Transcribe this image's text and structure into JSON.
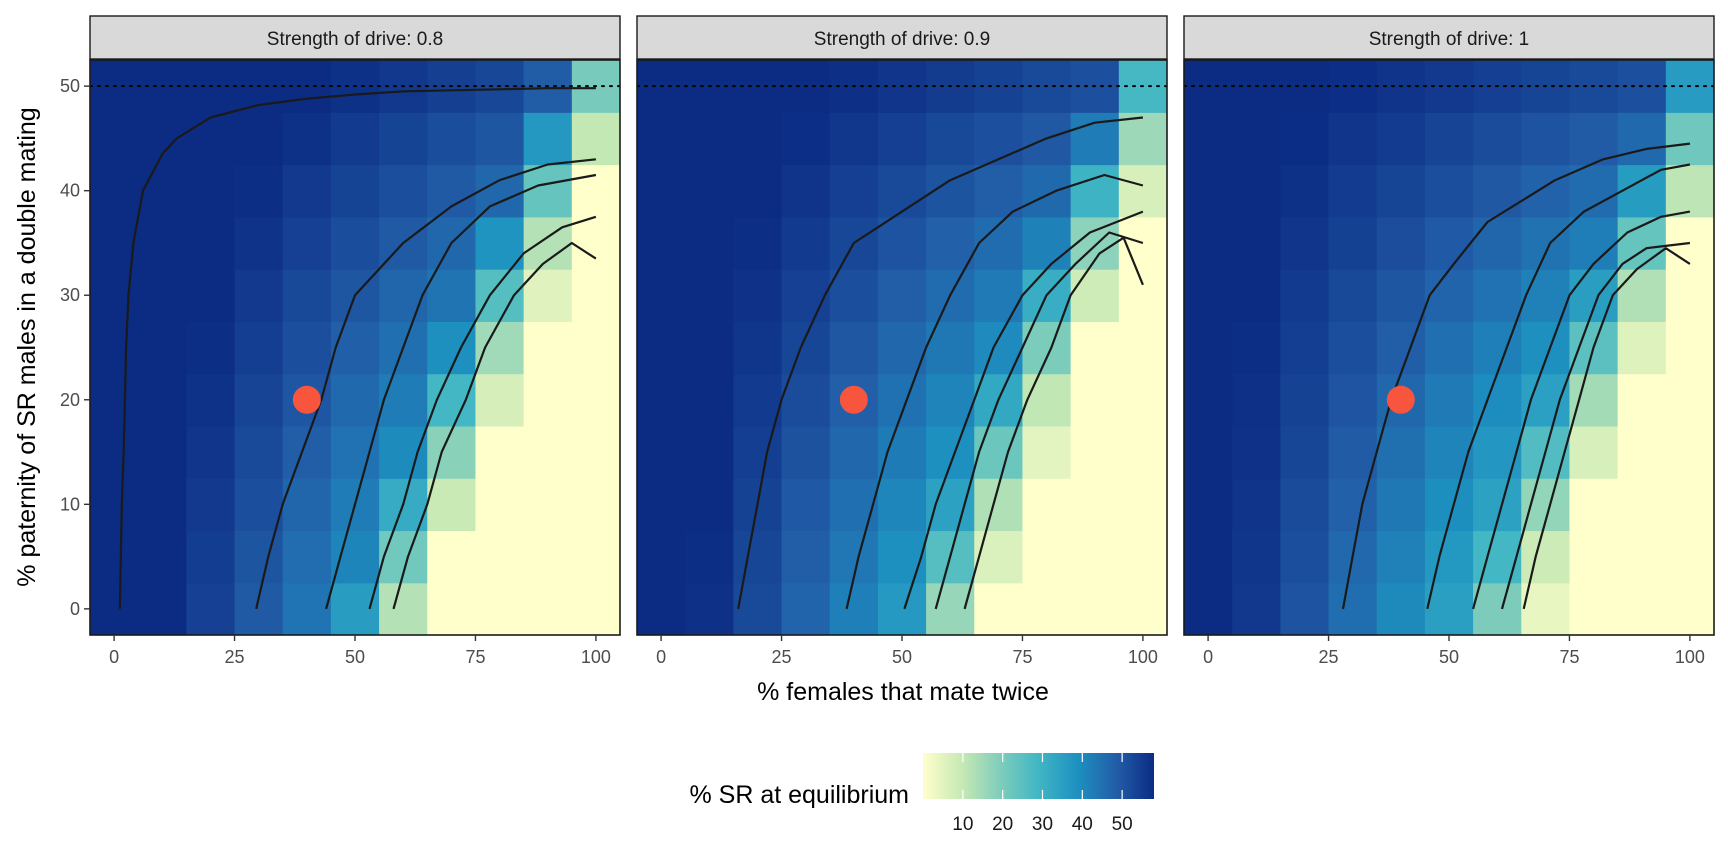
{
  "chart_data": {
    "type": "heatmap",
    "xlabel": "% females that mate twice",
    "ylabel": "% paternity of SR males in a double mating",
    "xlim": [
      -5,
      105
    ],
    "ylim": [
      -2.5,
      52.5
    ],
    "x_ticks": [
      0,
      25,
      50,
      75,
      100
    ],
    "y_ticks": [
      0,
      10,
      20,
      30,
      40,
      50
    ],
    "grid": "off",
    "x_cells": [
      0,
      10,
      20,
      30,
      40,
      50,
      60,
      70,
      80,
      90,
      100
    ],
    "y_cells": [
      0,
      5,
      10,
      15,
      20,
      25,
      30,
      35,
      40,
      45,
      50
    ],
    "reference_line": {
      "y": 50,
      "style": "dotted"
    },
    "marker": {
      "x": 40,
      "y": 20,
      "color": "#F8553F"
    },
    "legend": {
      "title": "% SR at equilibrium",
      "position": "bottom",
      "labels": [
        10,
        20,
        30,
        40,
        50
      ],
      "range": [
        0,
        58
      ],
      "colors": [
        "#FFFFCC",
        "#C7E9B4",
        "#7FCDBB",
        "#41B6C4",
        "#1D91C0",
        "#225EA8",
        "#0C2C84"
      ]
    },
    "panels": [
      {
        "strip": "Strength of drive: 0.8",
        "drive": 0.8,
        "contours": [
          [
            [
              1.2,
              0
            ],
            [
              1.6,
              10
            ],
            [
              2,
              15
            ],
            [
              2.5,
              25
            ],
            [
              3,
              30
            ],
            [
              4,
              35
            ],
            [
              6,
              40
            ],
            [
              10,
              43.5
            ],
            [
              13,
              45
            ],
            [
              20,
              47
            ],
            [
              30,
              48.2
            ],
            [
              40,
              48.8
            ],
            [
              50,
              49.2
            ],
            [
              60,
              49.5
            ],
            [
              70,
              49.6
            ],
            [
              80,
              49.7
            ],
            [
              90,
              49.8
            ],
            [
              100,
              49.8
            ]
          ],
          [
            [
              29.5,
              0
            ],
            [
              32,
              5
            ],
            [
              35,
              10
            ],
            [
              39,
              15
            ],
            [
              43,
              20
            ],
            [
              46,
              25
            ],
            [
              50,
              30
            ],
            [
              60,
              35
            ],
            [
              70,
              38.5
            ],
            [
              80,
              41
            ],
            [
              90,
              42.5
            ],
            [
              100,
              43
            ]
          ],
          [
            [
              44,
              0
            ],
            [
              47,
              5
            ],
            [
              50,
              10
            ],
            [
              53,
              15
            ],
            [
              56,
              20
            ],
            [
              60,
              25
            ],
            [
              64,
              30
            ],
            [
              70,
              35
            ],
            [
              78,
              38.5
            ],
            [
              88,
              40.5
            ],
            [
              100,
              41.5
            ]
          ],
          [
            [
              53,
              0
            ],
            [
              56,
              5
            ],
            [
              60,
              10
            ],
            [
              63,
              15
            ],
            [
              67,
              20
            ],
            [
              72,
              25
            ],
            [
              78,
              30
            ],
            [
              85,
              34
            ],
            [
              93,
              36.5
            ],
            [
              100,
              37.5
            ]
          ],
          [
            [
              58,
              0
            ],
            [
              61,
              5
            ],
            [
              65,
              10
            ],
            [
              68,
              15
            ],
            [
              73,
              20
            ],
            [
              77,
              25
            ],
            [
              83,
              30
            ],
            [
              89,
              33
            ],
            [
              95,
              35
            ],
            [
              100,
              33.5
            ]
          ]
        ]
      },
      {
        "strip": "Strength of drive: 0.9",
        "drive": 0.9,
        "contours": [
          [
            [
              16,
              0
            ],
            [
              18,
              5
            ],
            [
              20,
              10
            ],
            [
              22,
              15
            ],
            [
              25,
              20
            ],
            [
              29,
              25
            ],
            [
              34,
              30
            ],
            [
              40,
              35
            ],
            [
              50,
              38
            ],
            [
              60,
              41
            ],
            [
              70,
              43
            ],
            [
              80,
              45
            ],
            [
              90,
              46.5
            ],
            [
              100,
              47
            ]
          ],
          [
            [
              38.5,
              0
            ],
            [
              41,
              5
            ],
            [
              44,
              10
            ],
            [
              47,
              15
            ],
            [
              51,
              20
            ],
            [
              55,
              25
            ],
            [
              60,
              30
            ],
            [
              66,
              35
            ],
            [
              73,
              38
            ],
            [
              82,
              40
            ],
            [
              92,
              41.5
            ],
            [
              100,
              40.5
            ]
          ],
          [
            [
              50.5,
              0
            ],
            [
              54,
              5
            ],
            [
              57,
              10
            ],
            [
              61,
              15
            ],
            [
              65,
              20
            ],
            [
              69,
              25
            ],
            [
              75,
              30
            ],
            [
              81,
              33
            ],
            [
              89,
              36
            ],
            [
              100,
              38
            ]
          ],
          [
            [
              57,
              0
            ],
            [
              60,
              5
            ],
            [
              63,
              10
            ],
            [
              66,
              15
            ],
            [
              70,
              20
            ],
            [
              75,
              25
            ],
            [
              80,
              30
            ],
            [
              86,
              33
            ],
            [
              93,
              36
            ],
            [
              100,
              35
            ]
          ],
          [
            [
              63,
              0
            ],
            [
              66,
              5
            ],
            [
              69,
              10
            ],
            [
              72,
              15
            ],
            [
              76,
              20
            ],
            [
              81,
              25
            ],
            [
              85,
              30
            ],
            [
              91,
              34
            ],
            [
              96,
              35.5
            ],
            [
              100,
              31
            ]
          ]
        ]
      },
      {
        "strip": "Strength of drive: 1",
        "drive": 1.0,
        "contours": [
          [
            [
              28,
              0
            ],
            [
              30,
              5
            ],
            [
              32,
              10
            ],
            [
              35,
              15
            ],
            [
              38,
              20
            ],
            [
              42,
              25
            ],
            [
              46,
              30
            ],
            [
              51,
              33
            ],
            [
              58,
              37
            ],
            [
              65,
              39
            ],
            [
              72,
              41
            ],
            [
              82,
              43
            ],
            [
              91,
              44
            ],
            [
              100,
              44.5
            ]
          ],
          [
            [
              45.5,
              0
            ],
            [
              48,
              5
            ],
            [
              51,
              10
            ],
            [
              54,
              15
            ],
            [
              58,
              20
            ],
            [
              62,
              25
            ],
            [
              66,
              30
            ],
            [
              71,
              35
            ],
            [
              78,
              38
            ],
            [
              86,
              40
            ],
            [
              94,
              42
            ],
            [
              100,
              42.5
            ]
          ],
          [
            [
              55,
              0
            ],
            [
              58,
              5
            ],
            [
              61,
              10
            ],
            [
              64,
              15
            ],
            [
              67,
              20
            ],
            [
              71,
              25
            ],
            [
              75,
              30
            ],
            [
              80,
              33
            ],
            [
              87,
              36
            ],
            [
              94,
              37.5
            ],
            [
              100,
              38
            ]
          ],
          [
            [
              61,
              0
            ],
            [
              64,
              5
            ],
            [
              67,
              10
            ],
            [
              70,
              15
            ],
            [
              73,
              20
            ],
            [
              77,
              25
            ],
            [
              81,
              30
            ],
            [
              86,
              33
            ],
            [
              91,
              34.5
            ],
            [
              100,
              35
            ]
          ],
          [
            [
              65.5,
              0
            ],
            [
              68,
              5
            ],
            [
              71,
              10
            ],
            [
              74,
              15
            ],
            [
              77,
              20
            ],
            [
              80,
              25
            ],
            [
              84,
              30
            ],
            [
              89,
              32.5
            ],
            [
              95,
              34.5
            ],
            [
              100,
              33
            ]
          ]
        ]
      }
    ]
  }
}
